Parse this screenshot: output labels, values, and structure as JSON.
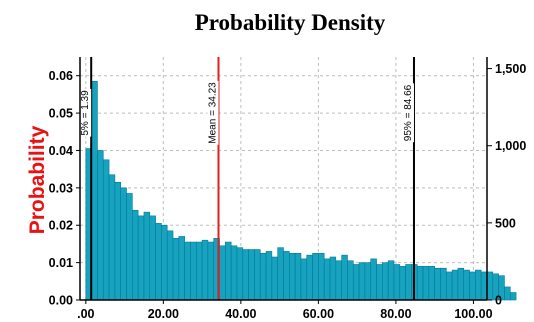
{
  "colors": {
    "bar": "#17a3bf",
    "mean_line": "#e02020",
    "percentile_line": "#000000",
    "ylabel": "#e81212"
  },
  "chart_data": {
    "type": "bar",
    "title": "Probability Density",
    "ylabel": "Probability",
    "xlabel": "",
    "xlim": [
      -1.5,
      103.5
    ],
    "ylim": [
      0,
      0.065
    ],
    "y2lim": [
      0,
      1575
    ],
    "grid": true,
    "x_ticks": [
      {
        "value": 0,
        "label": ".00"
      },
      {
        "value": 20,
        "label": "20.00"
      },
      {
        "value": 40,
        "label": "40.00"
      },
      {
        "value": 60,
        "label": "60.00"
      },
      {
        "value": 80,
        "label": "80.00"
      },
      {
        "value": 100,
        "label": "100.00"
      }
    ],
    "y_ticks": [
      {
        "value": 0,
        "label": "0.00"
      },
      {
        "value": 0.01,
        "label": "0.01"
      },
      {
        "value": 0.02,
        "label": "0.02"
      },
      {
        "value": 0.03,
        "label": "0.03"
      },
      {
        "value": 0.04,
        "label": "0.04"
      },
      {
        "value": 0.05,
        "label": "0.05"
      },
      {
        "value": 0.06,
        "label": "0.06"
      }
    ],
    "y2_ticks": [
      {
        "value": 0,
        "label": "0"
      },
      {
        "value": 500,
        "label": "500"
      },
      {
        "value": 1000,
        "label": "1,000"
      },
      {
        "value": 1500,
        "label": "1,500"
      }
    ],
    "bin_start": 0,
    "bin_width": 1.5,
    "values": [
      0.0405,
      0.0585,
      0.04,
      0.0375,
      0.0335,
      0.0315,
      0.03,
      0.0285,
      0.024,
      0.0225,
      0.0235,
      0.0225,
      0.0205,
      0.02,
      0.0185,
      0.0165,
      0.017,
      0.0155,
      0.0155,
      0.0155,
      0.016,
      0.0155,
      0.0165,
      0.0145,
      0.0155,
      0.0145,
      0.014,
      0.0135,
      0.0135,
      0.0135,
      0.0125,
      0.013,
      0.0115,
      0.014,
      0.013,
      0.0125,
      0.0125,
      0.011,
      0.012,
      0.0125,
      0.0125,
      0.011,
      0.0115,
      0.0105,
      0.012,
      0.0105,
      0.0095,
      0.01,
      0.01,
      0.011,
      0.0095,
      0.01,
      0.0105,
      0.0095,
      0.009,
      0.0095,
      0.0095,
      0.009,
      0.009,
      0.009,
      0.0085,
      0.0085,
      0.0075,
      0.008,
      0.0085,
      0.008,
      0.0075,
      0.008,
      0.0075,
      0.0075,
      0.007,
      0.0065,
      0.0035,
      0.002
    ],
    "markers": [
      {
        "value": 1.39,
        "label": "5% = 1.39",
        "kind": "percentile"
      },
      {
        "value": 34.23,
        "label": "Mean = 34.23",
        "kind": "mean"
      },
      {
        "value": 84.66,
        "label": "95% = 84.66",
        "kind": "percentile"
      }
    ]
  }
}
